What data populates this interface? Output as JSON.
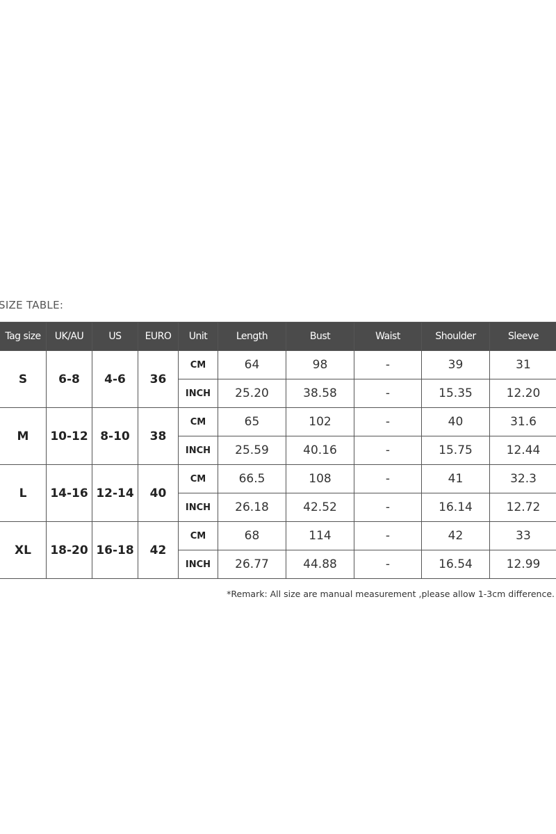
{
  "title": "SIZE TABLE:",
  "headers": [
    "Tag size",
    "UK/AU",
    "US",
    "EURO",
    "Unit",
    "Length",
    "Bust",
    "Waist",
    "Shoulder",
    "Sleeve"
  ],
  "rows": [
    {
      "tag": "S",
      "uk": "6-8",
      "us": "4-6",
      "euro": "36",
      "cm": {
        "unit": "CM",
        "length": "64",
        "bust": "98",
        "waist": "-",
        "shoulder": "39",
        "sleeve": "31"
      },
      "inch": {
        "unit": "INCH",
        "length": "25.20",
        "bust": "38.58",
        "waist": "-",
        "shoulder": "15.35",
        "sleeve": "12.20"
      }
    },
    {
      "tag": "M",
      "uk": "10-12",
      "us": "8-10",
      "euro": "38",
      "cm": {
        "unit": "CM",
        "length": "65",
        "bust": "102",
        "waist": "-",
        "shoulder": "40",
        "sleeve": "31.6"
      },
      "inch": {
        "unit": "INCH",
        "length": "25.59",
        "bust": "40.16",
        "waist": "-",
        "shoulder": "15.75",
        "sleeve": "12.44"
      }
    },
    {
      "tag": "L",
      "uk": "14-16",
      "us": "12-14",
      "euro": "40",
      "cm": {
        "unit": "CM",
        "length": "66.5",
        "bust": "108",
        "waist": "-",
        "shoulder": "41",
        "sleeve": "32.3"
      },
      "inch": {
        "unit": "INCH",
        "length": "26.18",
        "bust": "42.52",
        "waist": "-",
        "shoulder": "16.14",
        "sleeve": "12.72"
      }
    },
    {
      "tag": "XL",
      "uk": "18-20",
      "us": "16-18",
      "euro": "42",
      "cm": {
        "unit": "CM",
        "length": "68",
        "bust": "114",
        "waist": "-",
        "shoulder": "42",
        "sleeve": "33"
      },
      "inch": {
        "unit": "INCH",
        "length": "26.77",
        "bust": "44.88",
        "waist": "-",
        "shoulder": "16.54",
        "sleeve": "12.99"
      }
    }
  ],
  "remark": "*Remark: All size are manual measurement ,please allow 1-3cm difference.",
  "colors": {
    "header_bg": "#4b4b4b",
    "header_text": "#ffffff",
    "border": "#555555"
  }
}
